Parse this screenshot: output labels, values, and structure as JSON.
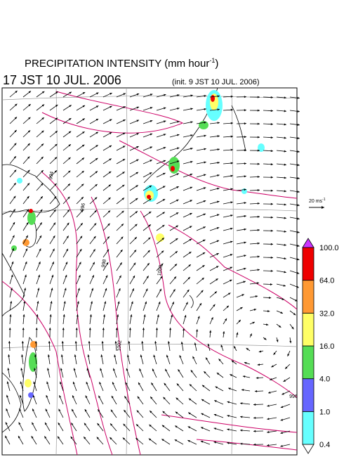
{
  "header": {
    "title": "PRECIPITATION INTENSITY (mm hour",
    "title_sup": "-1",
    "title_end": ")",
    "valid_time": "17 JST 10 JUL. 2006",
    "init_time": "(init. 9 JST 10 JUL. 2006)"
  },
  "wind_scale": {
    "label": "20 ms",
    "label_sup": "-1"
  },
  "isobar_labels": [
    "994",
    "996",
    "998",
    "1000",
    "1002",
    "996"
  ],
  "colorbar": {
    "levels": [
      {
        "value": 0.4,
        "label": "0.4"
      },
      {
        "value": 1,
        "label": "1.0"
      },
      {
        "value": 4,
        "label": "4.0"
      },
      {
        "value": 16,
        "label": "16.0"
      },
      {
        "value": 32,
        "label": "32.0"
      },
      {
        "value": 64,
        "label": "64.0"
      },
      {
        "value": 100,
        "label": "100.0"
      }
    ],
    "colors": [
      "#ffffff",
      "#66ffff",
      "#6666ff",
      "#55dd55",
      "#ffff66",
      "#ff9933",
      "#ee0000",
      "#cc33ff"
    ]
  }
}
